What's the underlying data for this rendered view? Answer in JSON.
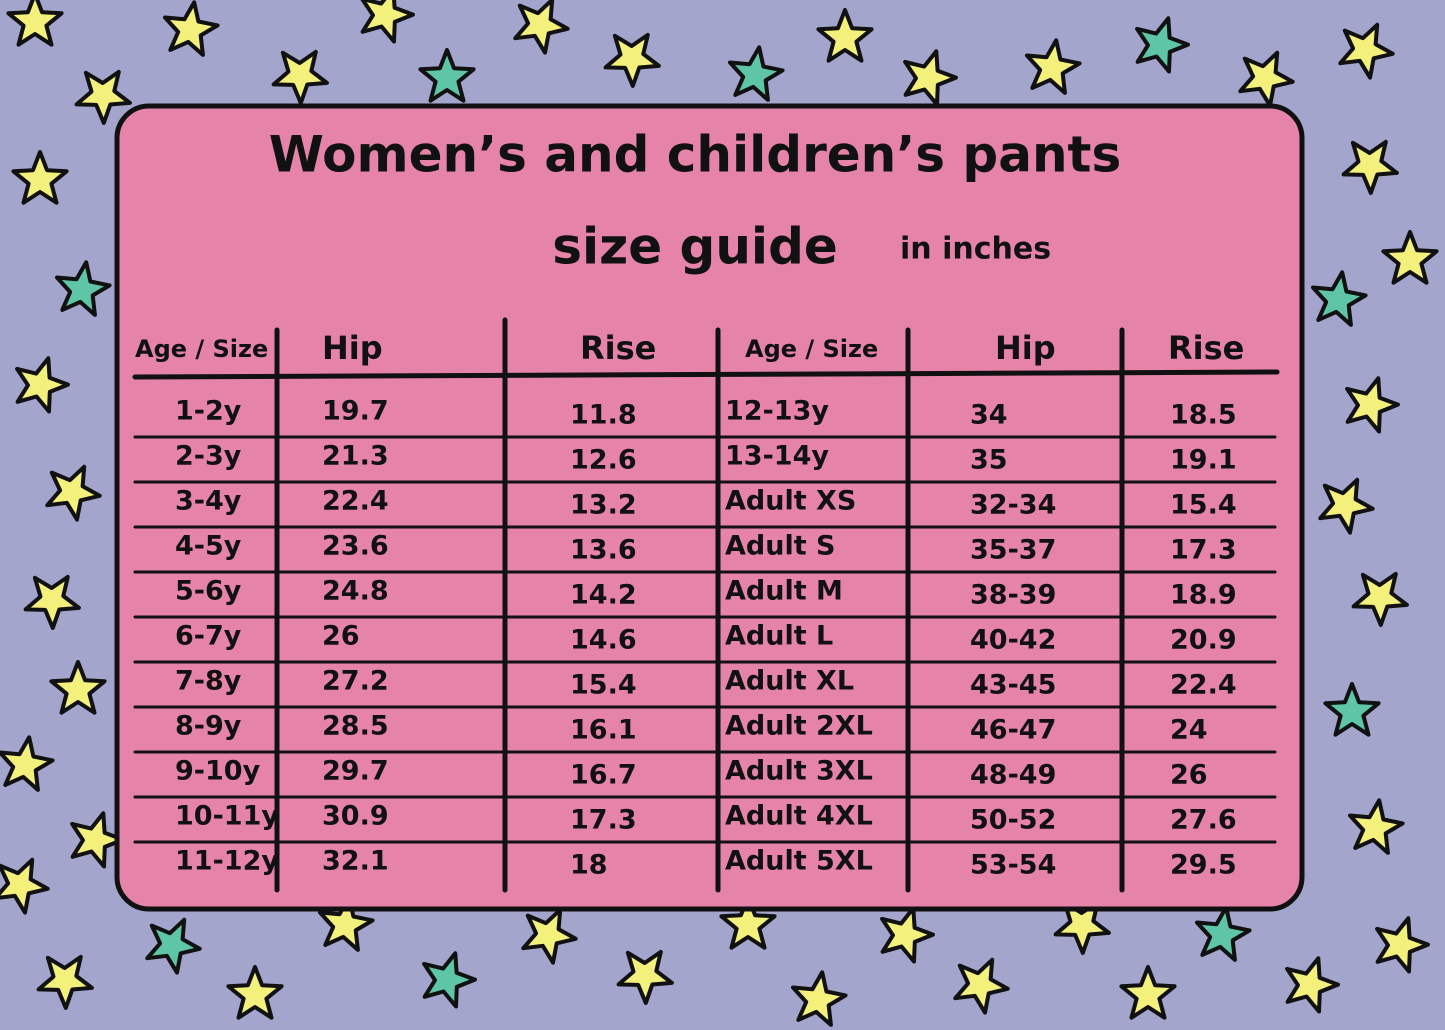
{
  "title": [
    "Women’s and children’s pants",
    "size guide"
  ],
  "unit_note": "in inches",
  "table": {
    "headers": [
      "Age / Size",
      "Hip",
      "Rise",
      "Age / Size",
      "Hip",
      "Rise"
    ],
    "rows": [
      [
        "1-2y",
        "19.7",
        "11.8",
        "12-13y",
        "34",
        "18.5"
      ],
      [
        "2-3y",
        "21.3",
        "12.6",
        "13-14y",
        "35",
        "19.1"
      ],
      [
        "3-4y",
        "22.4",
        "13.2",
        "Adult XS",
        "32-34",
        "15.4"
      ],
      [
        "4-5y",
        "23.6",
        "13.6",
        "Adult S",
        "35-37",
        "17.3"
      ],
      [
        "5-6y",
        "24.8",
        "14.2",
        "Adult M",
        "38-39",
        "18.9"
      ],
      [
        "6-7y",
        "26",
        "14.6",
        "Adult L",
        "40-42",
        "20.9"
      ],
      [
        "7-8y",
        "27.2",
        "15.4",
        "Adult XL",
        "43-45",
        "22.4"
      ],
      [
        "8-9y",
        "28.5",
        "16.1",
        "Adult 2XL",
        "46-47",
        "24"
      ],
      [
        "9-10y",
        "29.7",
        "16.7",
        "Adult 3XL",
        "48-49",
        "26"
      ],
      [
        "10-11y",
        "30.9",
        "17.3",
        "Adult 4XL",
        "50-52",
        "27.6"
      ],
      [
        "11-12y",
        "32.1",
        "18",
        "Adult 5XL",
        "53-54",
        "29.5"
      ]
    ]
  }
}
